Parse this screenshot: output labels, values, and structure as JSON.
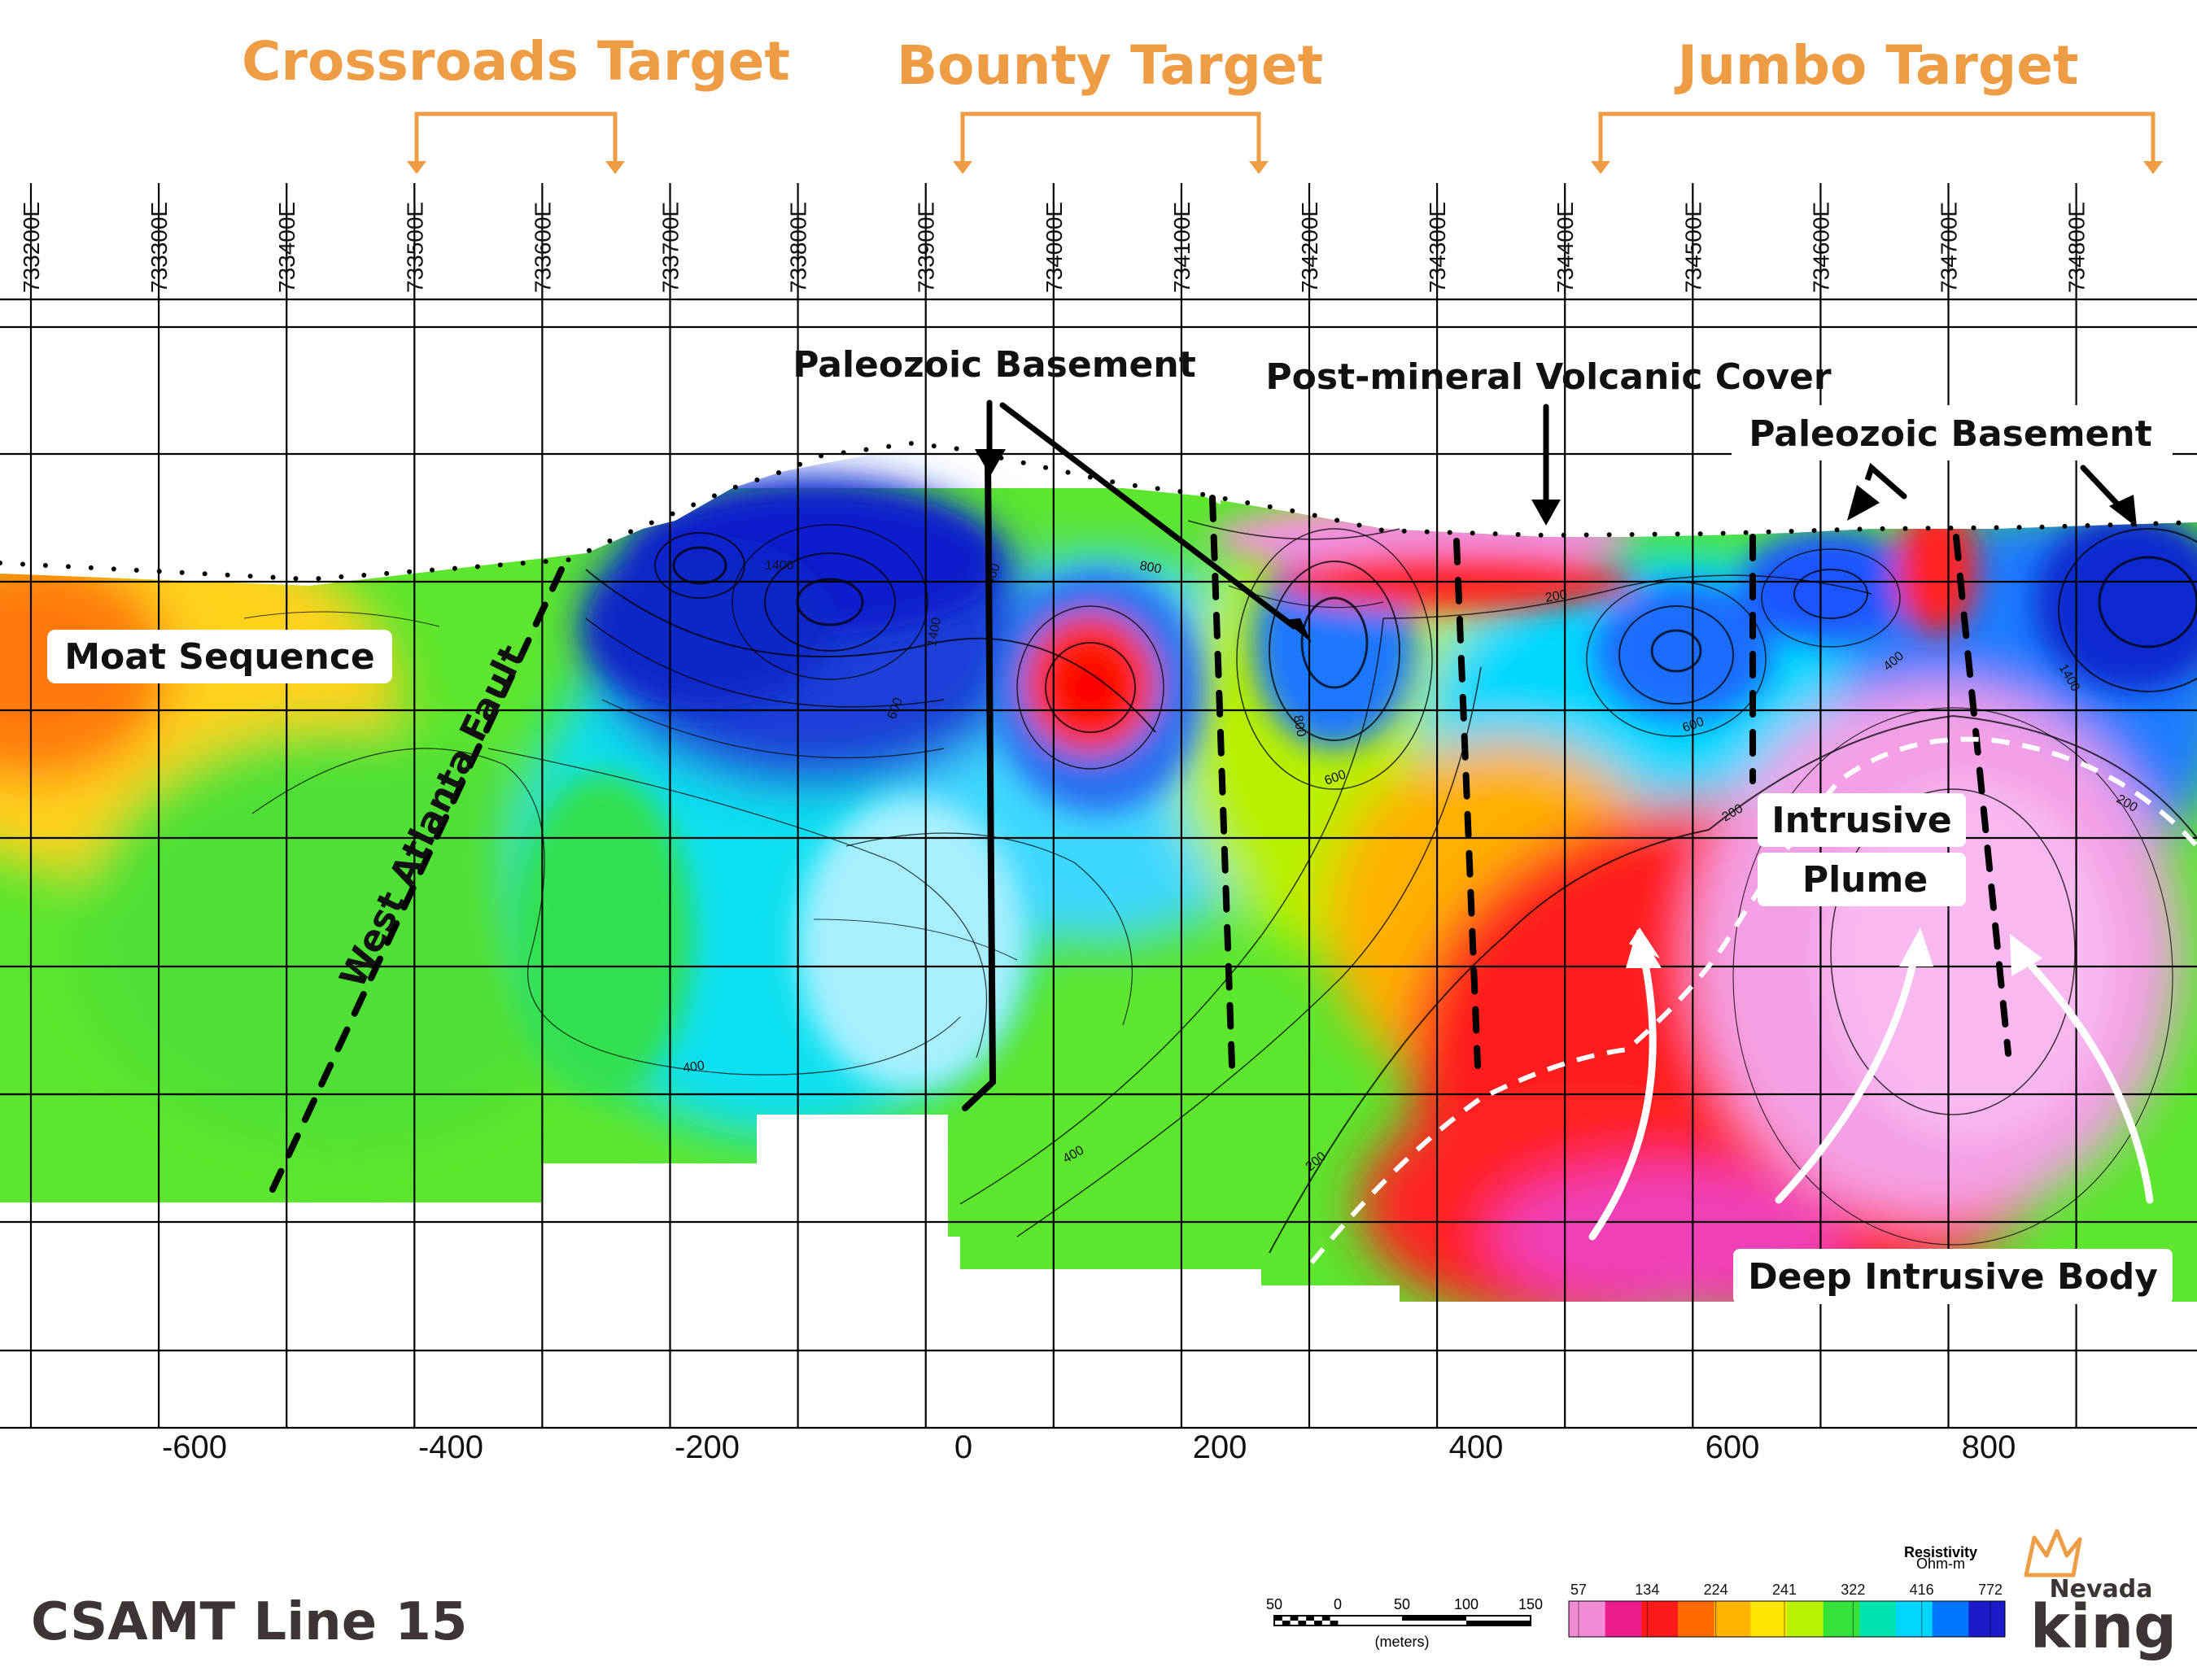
{
  "targets": [
    {
      "label": "Crossroads Target"
    },
    {
      "label": "Bounty Target"
    },
    {
      "label": "Jumbo Target"
    }
  ],
  "eastings": [
    "733200E",
    "733300E",
    "733400E",
    "733500E",
    "733600E",
    "733700E",
    "733800E",
    "733900E",
    "734000E",
    "734100E",
    "734200E",
    "734300E",
    "734400E",
    "734500E",
    "734600E",
    "734700E",
    "734800E"
  ],
  "distance_ticks": [
    "-600",
    "-400",
    "-200",
    "0",
    "200",
    "400",
    "600",
    "800"
  ],
  "annotations": {
    "paleozoic_basement_left": "Paleozoic Basement",
    "post_mineral_cover": "Post-mineral Volcanic Cover",
    "paleozoic_basement_right": "Paleozoic Basement",
    "moat_sequence": "Moat Sequence",
    "west_atlanta_fault": "West Atlanta Fault",
    "intrusive": "Intrusive",
    "plume": "Plume",
    "deep_intrusive_body": "Deep Intrusive Body"
  },
  "contour_labels": [
    "400",
    "400",
    "200",
    "200",
    "200",
    "600",
    "800",
    "600",
    "1400",
    "1400",
    "400",
    "600",
    "200",
    "800",
    "1400",
    "400"
  ],
  "title": "CSAMT Line 15",
  "scale_bar": {
    "ticks": [
      "50",
      "0",
      "50",
      "100",
      "150"
    ],
    "unit": "(meters)"
  },
  "legend": {
    "title": "Resistivity",
    "unit": "Ohm-m",
    "values": [
      "57",
      "134",
      "224",
      "241",
      "322",
      "416",
      "772"
    ],
    "colors": [
      "#f28ad8",
      "#ec1b8e",
      "#ff1a1a",
      "#ff6a00",
      "#ffb400",
      "#ffe500",
      "#b9f200",
      "#35e23a",
      "#00e5b0",
      "#00d6ff",
      "#0077ff",
      "#1a1ac8"
    ]
  },
  "logo": {
    "line1": "Nevada",
    "line2": "king"
  },
  "colors": {
    "target_orange": "#ee9d45",
    "dark_text": "#3d3434"
  }
}
